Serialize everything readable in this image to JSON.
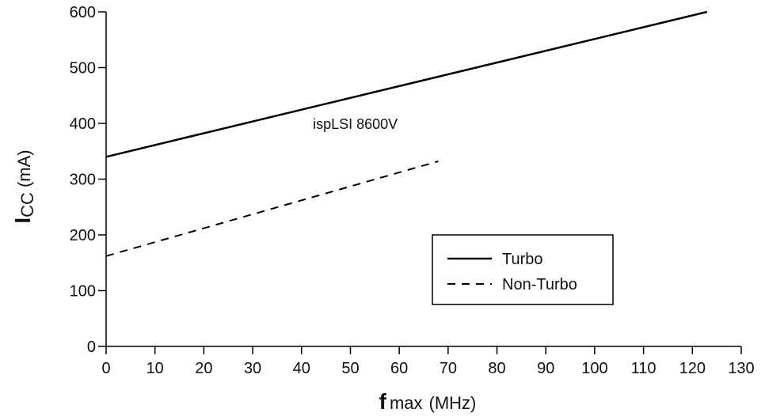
{
  "chart_data": {
    "type": "line",
    "title": "",
    "xlabel": {
      "main": "f",
      "sub": "max",
      "unit": "(MHz)"
    },
    "ylabel": {
      "main": "I",
      "sub": "CC",
      "unit": "(mA)"
    },
    "xlim": [
      0,
      130
    ],
    "ylim": [
      0,
      600
    ],
    "x_ticks": [
      0,
      10,
      20,
      30,
      40,
      50,
      60,
      70,
      80,
      90,
      100,
      110,
      120,
      130
    ],
    "y_ticks": [
      0,
      100,
      200,
      300,
      400,
      500,
      600
    ],
    "grid": false,
    "legend": {
      "placement": "lower-right"
    },
    "annotations": [
      {
        "text": "ispLSI 8600V",
        "x": 51,
        "y": 390
      }
    ],
    "series": [
      {
        "name": "Turbo",
        "style": "solid",
        "color": "#000000",
        "points": [
          {
            "x": 0,
            "y": 340
          },
          {
            "x": 123,
            "y": 600
          }
        ]
      },
      {
        "name": "Non-Turbo",
        "style": "dashed",
        "color": "#000000",
        "points": [
          {
            "x": 0,
            "y": 162
          },
          {
            "x": 68,
            "y": 332
          }
        ]
      }
    ]
  }
}
